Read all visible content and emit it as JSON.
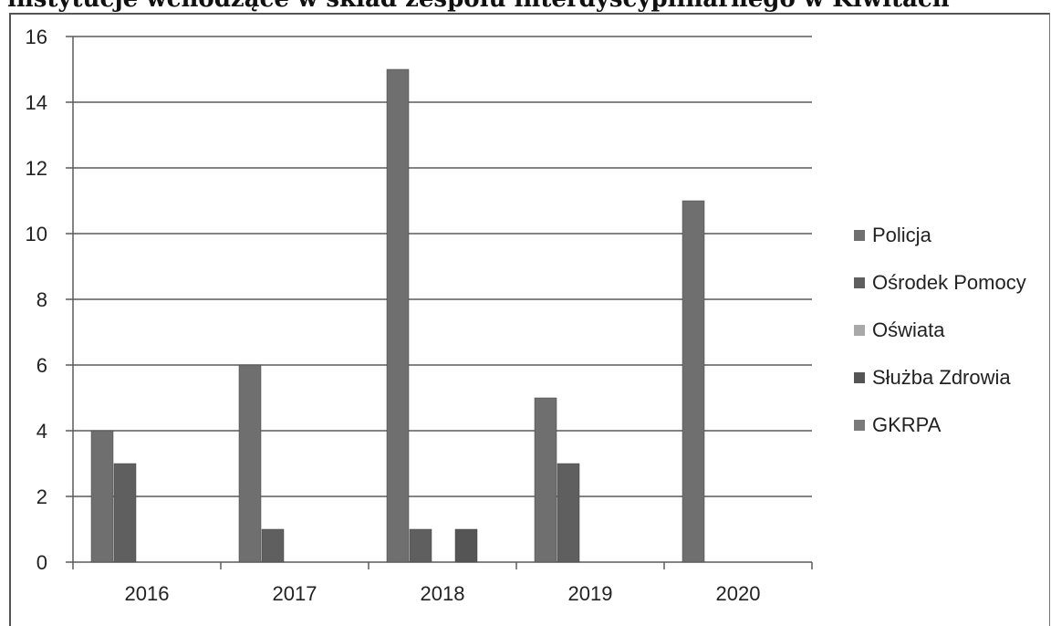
{
  "chart_data": {
    "type": "bar",
    "title": "instytucje wchodzące w skład zespołu interdyscyplinarnego w Kiwitach",
    "categories": [
      "2016",
      "2017",
      "2018",
      "2019",
      "2020"
    ],
    "ylim": [
      0,
      16
    ],
    "yticks": [
      0,
      2,
      4,
      6,
      8,
      10,
      12,
      14,
      16
    ],
    "grid": true,
    "legend_position": "right",
    "series": [
      {
        "name": "Policja",
        "color": "#6f6f6f",
        "values": [
          4,
          6,
          15,
          5,
          11
        ]
      },
      {
        "name": "Ośrodek Pomocy",
        "color": "#5f5f5f",
        "values": [
          3,
          1,
          1,
          3,
          0
        ]
      },
      {
        "name": "Oświata",
        "color": "#a9a9a9",
        "values": [
          0,
          0,
          0,
          0,
          0
        ]
      },
      {
        "name": "Służba Zdrowia",
        "color": "#555555",
        "values": [
          0,
          0,
          1,
          0,
          0
        ]
      },
      {
        "name": "GKRPA",
        "color": "#7a7a7a",
        "values": [
          0,
          0,
          0,
          0,
          0
        ]
      }
    ]
  }
}
